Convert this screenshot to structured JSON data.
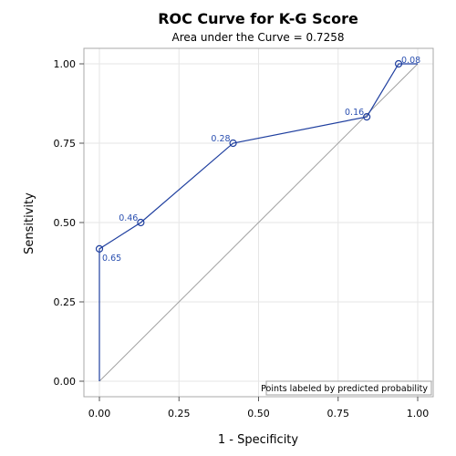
{
  "chart_data": {
    "type": "line",
    "title": "ROC Curve for K-G Score",
    "subtitle": "Area under the Curve = 0.7258",
    "xlabel": "1 - Specificity",
    "ylabel": "Sensitivity",
    "xlim": [
      0,
      1
    ],
    "ylim": [
      0,
      1
    ],
    "xticks": [
      "0.00",
      "0.25",
      "0.50",
      "0.75",
      "1.00"
    ],
    "yticks": [
      "0.00",
      "0.25",
      "0.50",
      "0.75",
      "1.00"
    ],
    "grid": true,
    "curve": {
      "x": [
        0.0,
        0.0,
        0.13,
        0.42,
        0.84,
        0.94,
        1.0
      ],
      "y": [
        0.0,
        0.417,
        0.5,
        0.75,
        0.833,
        1.0,
        1.0
      ]
    },
    "points": [
      {
        "x": 0.0,
        "y": 0.417,
        "label": "0.65"
      },
      {
        "x": 0.13,
        "y": 0.5,
        "label": "0.46"
      },
      {
        "x": 0.42,
        "y": 0.75,
        "label": "0.28"
      },
      {
        "x": 0.84,
        "y": 0.833,
        "label": "0.16"
      },
      {
        "x": 0.94,
        "y": 1.0,
        "label": "0.08"
      }
    ],
    "reference_line": {
      "x": [
        0,
        1
      ],
      "y": [
        0,
        1
      ]
    },
    "annotation": "Points labeled by predicted probability",
    "annotation_position": "bottom-right",
    "colors": {
      "curve": "#1f3f9f",
      "reference": "#a0a0a0",
      "grid": "#e6e6e6",
      "frame": "#a9a9a9",
      "label": "#2a4fb0"
    }
  }
}
